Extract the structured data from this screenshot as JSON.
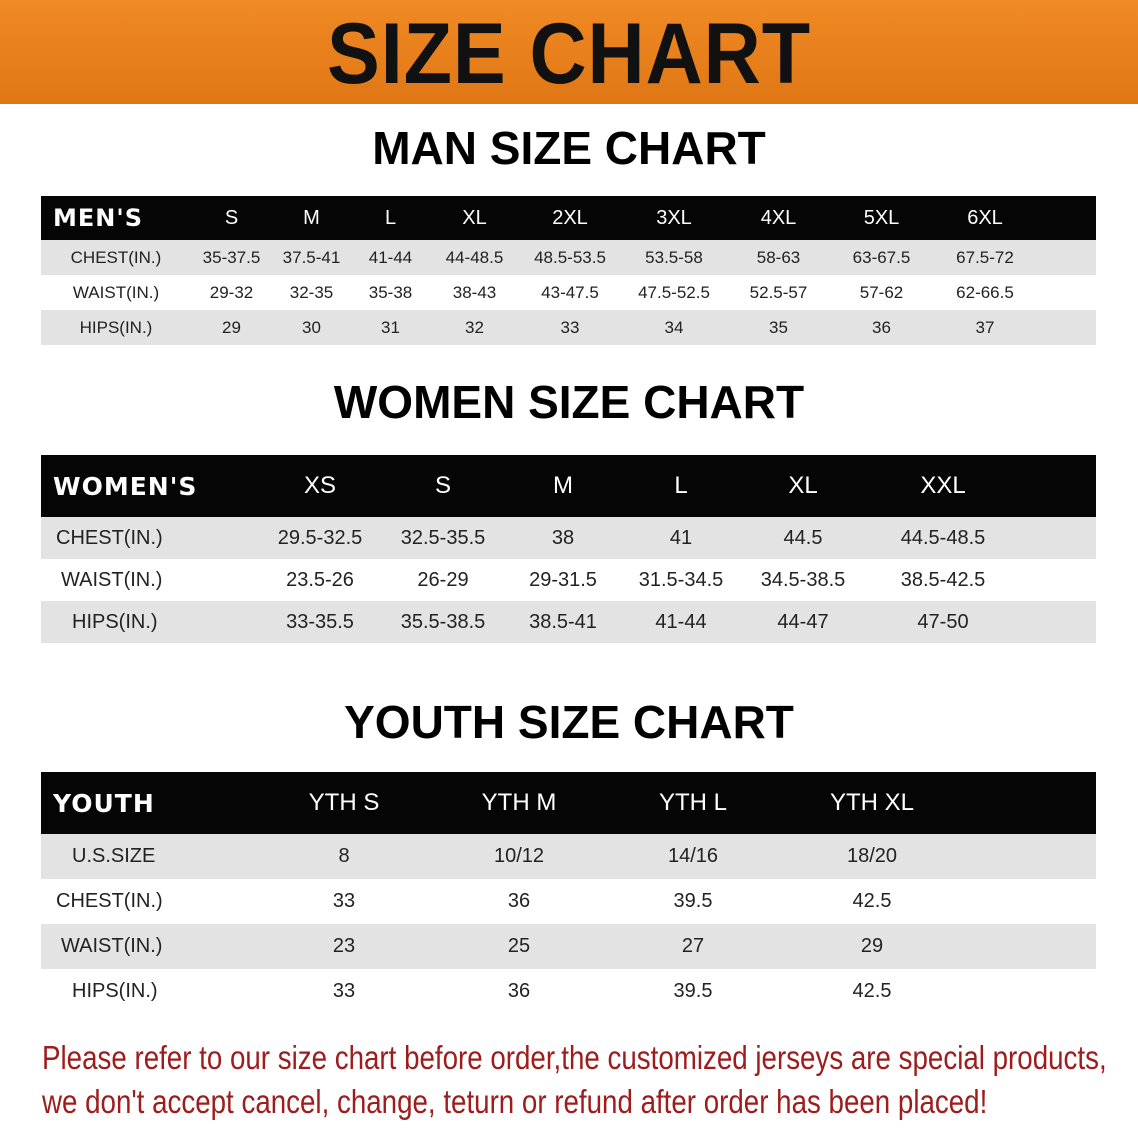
{
  "banner": {
    "title": "SIZE CHART",
    "color": "#e8801c"
  },
  "men": {
    "title": "MAN SIZE CHART",
    "header": [
      "MEN'S",
      "S",
      "M",
      "L",
      "XL",
      "2XL",
      "3XL",
      "4XL",
      "5XL",
      "6XL"
    ],
    "rows": [
      [
        "CHEST(IN.)",
        "35-37.5",
        "37.5-41",
        "41-44",
        "44-48.5",
        "48.5-53.5",
        "53.5-58",
        "58-63",
        "63-67.5",
        "67.5-72"
      ],
      [
        "WAIST(IN.)",
        "29-32",
        "32-35",
        "35-38",
        "38-43",
        "43-47.5",
        "47.5-52.5",
        "52.5-57",
        "57-62",
        "62-66.5"
      ],
      [
        "HIPS(IN.)",
        "29",
        "30",
        "31",
        "32",
        "33",
        "34",
        "35",
        "36",
        "37"
      ]
    ]
  },
  "women": {
    "title": "WOMEN SIZE CHART",
    "header": [
      "WOMEN'S",
      "XS",
      "S",
      "M",
      "L",
      "XL",
      "XXL"
    ],
    "rows": [
      [
        "CHEST(IN.)",
        "29.5-32.5",
        "32.5-35.5",
        "38",
        "41",
        "44.5",
        "44.5-48.5"
      ],
      [
        "WAIST(IN.)",
        "23.5-26",
        "26-29",
        "29-31.5",
        "31.5-34.5",
        "34.5-38.5",
        "38.5-42.5"
      ],
      [
        "HIPS(IN.)",
        "33-35.5",
        "35.5-38.5",
        "38.5-41",
        "41-44",
        "44-47",
        "47-50"
      ]
    ]
  },
  "youth": {
    "title": "YOUTH SIZE CHART",
    "header": [
      "YOUTH",
      "YTH S",
      "YTH M",
      "YTH L",
      "YTH XL"
    ],
    "rows": [
      [
        "U.S.SIZE",
        "8",
        "10/12",
        "14/16",
        "18/20"
      ],
      [
        "CHEST(IN.)",
        "33",
        "36",
        "39.5",
        "42.5"
      ],
      [
        "WAIST(IN.)",
        "23",
        "25",
        "27",
        "29"
      ],
      [
        "HIPS(IN.)",
        "33",
        "36",
        "39.5",
        "42.5"
      ]
    ]
  },
  "footer": {
    "line1": "Please refer to our size chart before order,the customized jerseys are special products,",
    "line2": "we don't accept cancel, change, teturn or refund after order has been placed!",
    "color": "#9e1c1c"
  }
}
